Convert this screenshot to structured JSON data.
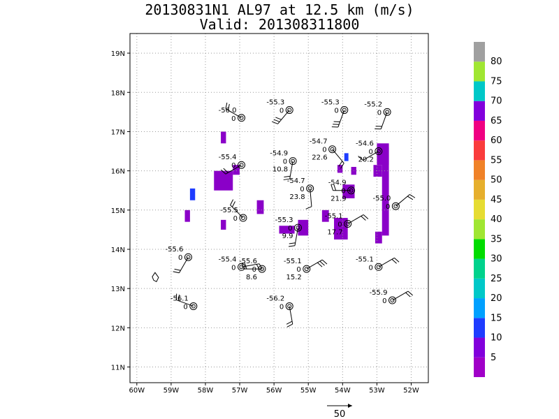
{
  "title": "20130831N1 AL97 at 12.5 km (m/s)",
  "subtitle": "Valid: 201308311800",
  "map": {
    "lon_range": [
      -60.2,
      -51.5
    ],
    "lat_range": [
      10.6,
      19.5
    ],
    "lon_ticks": [
      -60,
      -59,
      -58,
      -57,
      -56,
      -55,
      -54,
      -53,
      -52
    ],
    "lon_tick_labels": [
      "60W",
      "59W",
      "58W",
      "57W",
      "56W",
      "55W",
      "54W",
      "53W",
      "52W"
    ],
    "lat_ticks": [
      11,
      12,
      13,
      14,
      15,
      16,
      17,
      18,
      19
    ],
    "lat_tick_labels": [
      "11N",
      "12N",
      "13N",
      "14N",
      "15N",
      "16N",
      "17N",
      "18N",
      "19N"
    ],
    "grid": "dotted"
  },
  "stations": [
    {
      "lon": -56.95,
      "lat": 17.35,
      "temp": "-56.0",
      "cnt": "0",
      "val": "",
      "wdir": 300,
      "wspd": 15
    },
    {
      "lon": -55.55,
      "lat": 17.55,
      "temp": "-55.3",
      "cnt": "0",
      "val": "",
      "wdir": 220,
      "wspd": 30
    },
    {
      "lon": -53.95,
      "lat": 17.55,
      "temp": "-55.3",
      "cnt": "0",
      "val": "",
      "wdir": 200,
      "wspd": 25
    },
    {
      "lon": -52.7,
      "lat": 17.5,
      "temp": "-55.2",
      "cnt": "0",
      "val": "",
      "wdir": 200,
      "wspd": 15
    },
    {
      "lon": -56.95,
      "lat": 16.15,
      "temp": "-55.4",
      "cnt": "0",
      "val": "",
      "wdir": 240,
      "wspd": 15
    },
    {
      "lon": -55.45,
      "lat": 16.25,
      "temp": "-54.9",
      "cnt": "0",
      "val": "10.8",
      "wdir": 190,
      "wspd": 15
    },
    {
      "lon": -54.3,
      "lat": 16.55,
      "temp": "-54.7",
      "cnt": "0",
      "val": "22.6",
      "wdir": 140,
      "wspd": 15
    },
    {
      "lon": -52.95,
      "lat": 16.5,
      "temp": "-54.6",
      "cnt": "0",
      "val": "20.2",
      "wdir": 240,
      "wspd": 10
    },
    {
      "lon": -54.95,
      "lat": 15.55,
      "temp": "-54.7",
      "cnt": "0",
      "val": "23.8",
      "wdir": 175,
      "wspd": 10
    },
    {
      "lon": -53.75,
      "lat": 15.5,
      "temp": "-54.9",
      "cnt": "0",
      "val": "21.9",
      "wdir": 270,
      "wspd": 15
    },
    {
      "lon": -52.45,
      "lat": 15.1,
      "temp": "-55.0",
      "cnt": "0",
      "val": "",
      "wdir": 50,
      "wspd": 15
    },
    {
      "lon": -56.9,
      "lat": 14.8,
      "temp": "-55.5",
      "cnt": "0",
      "val": "",
      "wdir": 315,
      "wspd": 15
    },
    {
      "lon": -55.3,
      "lat": 14.55,
      "temp": "-55.3",
      "cnt": "0",
      "val": "9.9",
      "wdir": 190,
      "wspd": 15
    },
    {
      "lon": -53.85,
      "lat": 14.65,
      "temp": "-55.1",
      "cnt": "0",
      "val": "17.7",
      "wdir": 60,
      "wspd": 15
    },
    {
      "lon": -58.5,
      "lat": 13.8,
      "temp": "-55.6",
      "cnt": "0",
      "val": "",
      "wdir": 210,
      "wspd": 20
    },
    {
      "lon": -56.95,
      "lat": 13.55,
      "temp": "-55.4",
      "cnt": "0",
      "val": "",
      "wdir": 80,
      "wspd": 15
    },
    {
      "lon": -56.35,
      "lat": 13.5,
      "temp": "-55.6",
      "cnt": "0",
      "val": "8.6",
      "wdir": 270,
      "wspd": 15
    },
    {
      "lon": -55.05,
      "lat": 13.5,
      "temp": "-55.1",
      "cnt": "0",
      "val": "15.2",
      "wdir": 60,
      "wspd": 25
    },
    {
      "lon": -52.95,
      "lat": 13.55,
      "temp": "-55.1",
      "cnt": "0",
      "val": "",
      "wdir": 60,
      "wspd": 15
    },
    {
      "lon": -58.35,
      "lat": 12.55,
      "temp": "-56.1",
      "cnt": "0",
      "val": "",
      "wdir": 290,
      "wspd": 20
    },
    {
      "lon": -55.55,
      "lat": 12.55,
      "temp": "-56.2",
      "cnt": "0",
      "val": "",
      "wdir": 170,
      "wspd": 20
    },
    {
      "lon": -52.55,
      "lat": 12.7,
      "temp": "-55.9",
      "cnt": "0",
      "val": "",
      "wdir": 60,
      "wspd": 15
    }
  ],
  "shading": [
    {
      "lon": -57.55,
      "lat": 17.0,
      "w": 0.15,
      "h": 0.3,
      "c": "#8a00c8"
    },
    {
      "lon": -57.75,
      "lat": 16.0,
      "w": 0.55,
      "h": 0.5,
      "c": "#8a00c8"
    },
    {
      "lon": -57.2,
      "lat": 16.15,
      "w": 0.2,
      "h": 0.25,
      "c": "#8a00c8"
    },
    {
      "lon": -58.45,
      "lat": 15.55,
      "w": 0.15,
      "h": 0.3,
      "c": "#1e3cff"
    },
    {
      "lon": -58.6,
      "lat": 15.0,
      "w": 0.15,
      "h": 0.3,
      "c": "#8a00c8"
    },
    {
      "lon": -56.5,
      "lat": 15.25,
      "w": 0.2,
      "h": 0.35,
      "c": "#8a00c8"
    },
    {
      "lon": -57.55,
      "lat": 14.75,
      "w": 0.15,
      "h": 0.25,
      "c": "#8a00c8"
    },
    {
      "lon": -55.85,
      "lat": 14.6,
      "w": 0.45,
      "h": 0.2,
      "c": "#8a00c8"
    },
    {
      "lon": -55.3,
      "lat": 14.75,
      "w": 0.3,
      "h": 0.4,
      "c": "#8a00c8"
    },
    {
      "lon": -54.6,
      "lat": 15.0,
      "w": 0.2,
      "h": 0.3,
      "c": "#8a00c8"
    },
    {
      "lon": -54.25,
      "lat": 14.8,
      "w": 0.4,
      "h": 0.55,
      "c": "#8a00c8"
    },
    {
      "lon": -54.0,
      "lat": 15.65,
      "w": 0.35,
      "h": 0.35,
      "c": "#8a00c8"
    },
    {
      "lon": -53.95,
      "lat": 16.45,
      "w": 0.12,
      "h": 0.2,
      "c": "#1e3cff"
    },
    {
      "lon": -54.15,
      "lat": 16.15,
      "w": 0.15,
      "h": 0.2,
      "c": "#8a00c8"
    },
    {
      "lon": -53.75,
      "lat": 16.1,
      "w": 0.15,
      "h": 0.2,
      "c": "#8a00c8"
    },
    {
      "lon": -53.0,
      "lat": 16.7,
      "w": 0.35,
      "h": 0.55,
      "c": "#8a00c8"
    },
    {
      "lon": -53.1,
      "lat": 16.15,
      "w": 0.25,
      "h": 0.3,
      "c": "#8a00c8"
    },
    {
      "lon": -52.85,
      "lat": 16.6,
      "w": 0.2,
      "h": 2.25,
      "c": "#8a00c8"
    },
    {
      "lon": -53.05,
      "lat": 14.45,
      "w": 0.2,
      "h": 0.3,
      "c": "#8a00c8"
    }
  ],
  "colorbar": {
    "levels": [
      "5",
      "10",
      "15",
      "20",
      "25",
      "30",
      "35",
      "40",
      "45",
      "50",
      "55",
      "60",
      "65",
      "70",
      "75",
      "80"
    ],
    "colors": [
      "#a000c8",
      "#8200dc",
      "#1e3cff",
      "#00a0ff",
      "#00c8c8",
      "#00d28c",
      "#00dc00",
      "#a0e632",
      "#e6dc32",
      "#e6af2d",
      "#f08228",
      "#fa3c3c",
      "#f00082",
      "#8200dc",
      "#00c8c8",
      "#a0e632",
      "#a0a0a0"
    ]
  },
  "vector_scale": {
    "label": "50"
  }
}
